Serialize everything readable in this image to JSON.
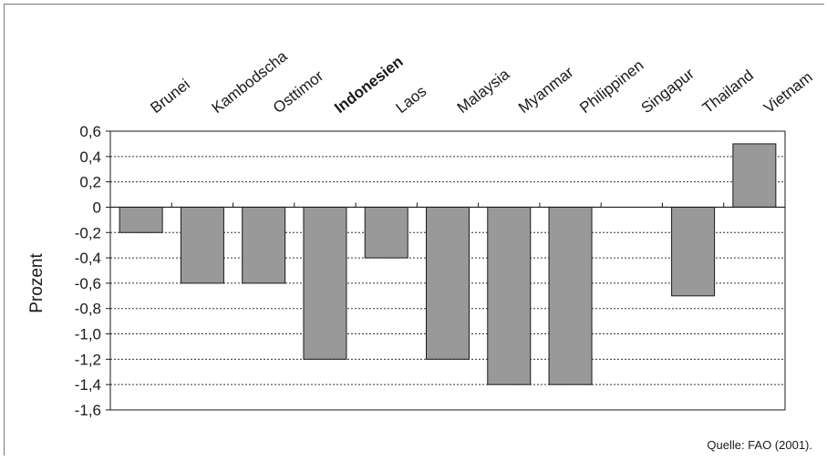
{
  "chart_data": {
    "type": "bar",
    "categories": [
      "Brunei",
      "Kambodscha",
      "Osttimor",
      "Indonesien",
      "Laos",
      "Malaysia",
      "Myanmar",
      "Philippinen",
      "Singapur",
      "Thailand",
      "Vietnam"
    ],
    "highlight_category": "Indonesien",
    "values": [
      -0.2,
      -0.6,
      -0.6,
      -1.2,
      -0.4,
      -1.2,
      -1.4,
      -1.4,
      0,
      -0.7,
      0.5
    ],
    "ylabel": "Prozent",
    "ylim": [
      -1.6,
      0.6
    ],
    "yticks": [
      0.6,
      0.4,
      0.2,
      0,
      -0.2,
      -0.4,
      -0.6,
      -0.8,
      -1.0,
      -1.2,
      -1.4,
      -1.6
    ],
    "ytick_labels": [
      "0,6",
      "0,4",
      "0,2",
      "0",
      "-0,2",
      "-0,4",
      "-0,6",
      "-0,8",
      "-1,0",
      "-1,2",
      "-1,4",
      "-1,6"
    ],
    "grid": "dotted horizontal",
    "bar_color": "#999999",
    "source": "Quelle: FAO (2001)."
  }
}
